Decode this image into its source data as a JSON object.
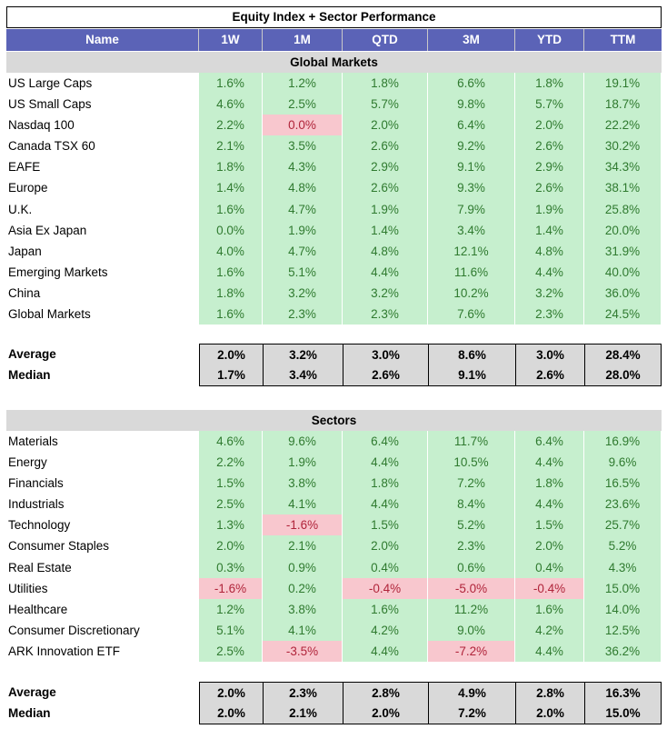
{
  "title": "Equity Index + Sector Performance",
  "columns": [
    "Name",
    "1W",
    "1M",
    "QTD",
    "3M",
    "YTD",
    "TTM"
  ],
  "sections": [
    {
      "header": "Global Markets",
      "rows": [
        {
          "name": "US Large Caps",
          "values": [
            "1.6%",
            "1.2%",
            "1.8%",
            "6.6%",
            "1.8%",
            "19.1%"
          ]
        },
        {
          "name": "US Small Caps",
          "values": [
            "4.6%",
            "2.5%",
            "5.7%",
            "9.8%",
            "5.7%",
            "18.7%"
          ]
        },
        {
          "name": "Nasdaq 100",
          "values": [
            "2.2%",
            "0.0%",
            "2.0%",
            "6.4%",
            "2.0%",
            "22.2%"
          ]
        },
        {
          "name": "Canada TSX 60",
          "values": [
            "2.1%",
            "3.5%",
            "2.6%",
            "9.2%",
            "2.6%",
            "30.2%"
          ]
        },
        {
          "name": "EAFE",
          "values": [
            "1.8%",
            "4.3%",
            "2.9%",
            "9.1%",
            "2.9%",
            "34.3%"
          ]
        },
        {
          "name": "Europe",
          "values": [
            "1.4%",
            "4.8%",
            "2.6%",
            "9.3%",
            "2.6%",
            "38.1%"
          ]
        },
        {
          "name": "U.K.",
          "values": [
            "1.6%",
            "4.7%",
            "1.9%",
            "7.9%",
            "1.9%",
            "25.8%"
          ]
        },
        {
          "name": "Asia Ex Japan",
          "values": [
            "0.0%",
            "1.9%",
            "1.4%",
            "3.4%",
            "1.4%",
            "20.0%"
          ]
        },
        {
          "name": "Japan",
          "values": [
            "4.0%",
            "4.7%",
            "4.8%",
            "12.1%",
            "4.8%",
            "31.9%"
          ]
        },
        {
          "name": "Emerging Markets",
          "values": [
            "1.6%",
            "5.1%",
            "4.4%",
            "11.6%",
            "4.4%",
            "40.0%"
          ]
        },
        {
          "name": "China",
          "values": [
            "1.8%",
            "3.2%",
            "3.2%",
            "10.2%",
            "3.2%",
            "36.0%"
          ]
        },
        {
          "name": "Global Markets",
          "values": [
            "1.6%",
            "2.3%",
            "2.3%",
            "7.6%",
            "2.3%",
            "24.5%"
          ]
        }
      ],
      "stats": [
        {
          "label": "Average",
          "values": [
            "2.0%",
            "3.2%",
            "3.0%",
            "8.6%",
            "3.0%",
            "28.4%"
          ]
        },
        {
          "label": "Median",
          "values": [
            "1.7%",
            "3.4%",
            "2.6%",
            "9.1%",
            "2.6%",
            "28.0%"
          ]
        }
      ]
    },
    {
      "header": "Sectors",
      "rows": [
        {
          "name": "Materials",
          "values": [
            "4.6%",
            "9.6%",
            "6.4%",
            "11.7%",
            "6.4%",
            "16.9%"
          ]
        },
        {
          "name": "Energy",
          "values": [
            "2.2%",
            "1.9%",
            "4.4%",
            "10.5%",
            "4.4%",
            "9.6%"
          ]
        },
        {
          "name": "Financials",
          "values": [
            "1.5%",
            "3.8%",
            "1.8%",
            "7.2%",
            "1.8%",
            "16.5%"
          ]
        },
        {
          "name": "Industrials",
          "values": [
            "2.5%",
            "4.1%",
            "4.4%",
            "8.4%",
            "4.4%",
            "23.6%"
          ]
        },
        {
          "name": "Technology",
          "values": [
            "1.3%",
            "-1.6%",
            "1.5%",
            "5.2%",
            "1.5%",
            "25.7%"
          ]
        },
        {
          "name": "Consumer Staples",
          "values": [
            "2.0%",
            "2.1%",
            "2.0%",
            "2.3%",
            "2.0%",
            "5.2%"
          ]
        },
        {
          "name": "Real Estate",
          "values": [
            "0.3%",
            "0.9%",
            "0.4%",
            "0.6%",
            "0.4%",
            "4.3%"
          ]
        },
        {
          "name": "Utilities",
          "values": [
            "-1.6%",
            "0.2%",
            "-0.4%",
            "-5.0%",
            "-0.4%",
            "15.0%"
          ]
        },
        {
          "name": "Healthcare",
          "values": [
            "1.2%",
            "3.8%",
            "1.6%",
            "11.2%",
            "1.6%",
            "14.0%"
          ]
        },
        {
          "name": "Consumer Discretionary",
          "values": [
            "5.1%",
            "4.1%",
            "4.2%",
            "9.0%",
            "4.2%",
            "12.5%"
          ]
        },
        {
          "name": "ARK Innovation ETF",
          "values": [
            "2.5%",
            "-3.5%",
            "4.4%",
            "-7.2%",
            "4.4%",
            "36.2%"
          ]
        }
      ],
      "stats": [
        {
          "label": "Average",
          "values": [
            "2.0%",
            "2.3%",
            "2.8%",
            "4.9%",
            "2.8%",
            "16.3%"
          ]
        },
        {
          "label": "Median",
          "values": [
            "2.0%",
            "2.1%",
            "2.0%",
            "7.2%",
            "2.0%",
            "15.0%"
          ]
        }
      ]
    }
  ]
}
